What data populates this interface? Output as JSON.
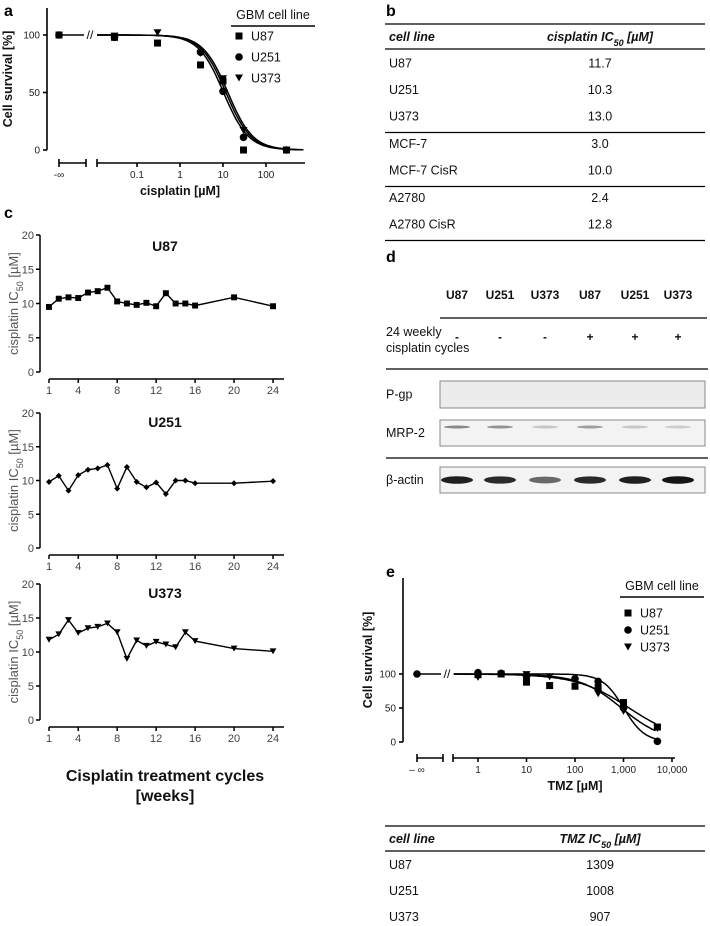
{
  "panel_labels": {
    "a": "a",
    "b": "b",
    "c": "c",
    "d": "d",
    "e": "e"
  },
  "chart_data": [
    {
      "id": "a",
      "type": "scatter",
      "xlabel": "cisplatin [µM]",
      "ylabel": "Cell survival [%]",
      "x_scale": "log",
      "x_ticks": [
        {
          "v": "-inf",
          "label": "-∞"
        },
        {
          "v": 0.1,
          "label": "0.1"
        },
        {
          "v": 1,
          "label": "1"
        },
        {
          "v": 10,
          "label": "10"
        },
        {
          "v": 100,
          "label": "100"
        }
      ],
      "y_ticks": [
        0,
        50,
        100
      ],
      "ylim": [
        0,
        120
      ],
      "legend_title": "GBM cell line",
      "legend_position": "top-right",
      "hill_slope": 1.5,
      "series": [
        {
          "name": "U87",
          "marker": "square",
          "ic50": 11.7,
          "points": [
            [
              "-inf",
              100
            ],
            [
              0.03,
              98
            ],
            [
              0.3,
              93
            ],
            [
              3,
              74
            ],
            [
              10,
              60
            ],
            [
              30,
              0
            ],
            [
              300,
              0
            ]
          ]
        },
        {
          "name": "U251",
          "marker": "circle",
          "ic50": 10.3,
          "points": [
            [
              "-inf",
              100
            ],
            [
              0.03,
              98
            ],
            [
              3,
              85
            ],
            [
              10,
              51
            ],
            [
              30,
              11
            ],
            [
              300,
              0
            ]
          ]
        },
        {
          "name": "U373",
          "marker": "triangle",
          "ic50": 13.0,
          "points": [
            [
              0.03,
              99
            ],
            [
              0.3,
              102
            ],
            [
              3,
              84
            ],
            [
              10,
              62
            ],
            [
              30,
              17
            ],
            [
              300,
              0
            ]
          ]
        }
      ]
    },
    {
      "id": "b",
      "type": "table",
      "columns": [
        "cell line",
        "cisplatin IC",
        "50",
        " [µM]"
      ],
      "groups": [
        [
          [
            "U87",
            "11.7"
          ],
          [
            "U251",
            "10.3"
          ],
          [
            "U373",
            "13.0"
          ]
        ],
        [
          [
            "MCF-7",
            "3.0"
          ],
          [
            "MCF-7 CisR",
            "10.0"
          ]
        ],
        [
          [
            "A2780",
            "2.4"
          ],
          [
            "A2780 CisR",
            "12.8"
          ]
        ]
      ]
    },
    {
      "id": "c",
      "type": "line",
      "xlabel_line1": "Cisplatin treatment cycles",
      "xlabel_line2": "[weeks]",
      "ylabel_prefix": "cisplatin IC",
      "ylabel_sub": "50",
      "ylabel_suffix": " [µM]",
      "x_ticks": [
        1,
        4,
        8,
        12,
        16,
        20,
        24
      ],
      "y_ticks": [
        0,
        5,
        10,
        15,
        20
      ],
      "ylim": [
        0,
        20
      ],
      "weeks": [
        1,
        2,
        3,
        4,
        5,
        6,
        7,
        8,
        9,
        10,
        11,
        12,
        13,
        14,
        15,
        16,
        20,
        24
      ],
      "series": [
        {
          "name": "U87",
          "marker": "square",
          "values": [
            9.5,
            10.7,
            10.9,
            10.8,
            11.6,
            11.8,
            12.3,
            10.3,
            10.0,
            9.8,
            10.1,
            9.6,
            11.5,
            10.0,
            10.0,
            9.7,
            10.9,
            9.6
          ]
        },
        {
          "name": "U251",
          "marker": "diamond",
          "values": [
            9.8,
            10.7,
            8.5,
            10.8,
            11.6,
            11.8,
            12.3,
            8.8,
            12.0,
            9.8,
            9.0,
            9.7,
            8.0,
            10.0,
            10.0,
            9.6,
            9.6,
            9.9
          ]
        },
        {
          "name": "U373",
          "marker": "triangle",
          "values": [
            11.8,
            12.6,
            14.7,
            12.8,
            13.5,
            13.7,
            14.2,
            12.9,
            9.0,
            11.7,
            10.9,
            11.5,
            11.1,
            10.7,
            12.9,
            11.6,
            10.5,
            10.1
          ]
        }
      ]
    },
    {
      "id": "e",
      "type": "scatter",
      "xlabel": "TMZ [µM]",
      "ylabel": "Cell survival [%]",
      "x_scale": "log",
      "x_ticks": [
        {
          "v": "-inf",
          "label": "– ∞"
        },
        {
          "v": 1,
          "label": "1"
        },
        {
          "v": 10,
          "label": "10"
        },
        {
          "v": 100,
          "label": "100"
        },
        {
          "v": 1000,
          "label": "1,000"
        },
        {
          "v": 10000,
          "label": "10,000"
        }
      ],
      "y_ticks": [
        0,
        50,
        100
      ],
      "ylim": [
        0,
        120
      ],
      "legend_title": "GBM cell line",
      "legend_position": "top-right",
      "series": [
        {
          "name": "U87",
          "marker": "square",
          "ic50": 1309,
          "hill": 0.8,
          "points": [
            [
              1,
              99
            ],
            [
              3,
              100
            ],
            [
              10,
              88
            ],
            [
              30,
              83
            ],
            [
              100,
              82
            ],
            [
              300,
              80
            ],
            [
              1000,
              58
            ],
            [
              5000,
              22
            ]
          ]
        },
        {
          "name": "U251",
          "marker": "circle",
          "ic50": 1008,
          "hill": 2.0,
          "points": [
            [
              "-inf",
              100
            ],
            [
              1,
              102
            ],
            [
              3,
              101
            ],
            [
              10,
              96
            ],
            [
              100,
              93
            ],
            [
              300,
              89
            ],
            [
              1000,
              50
            ],
            [
              5000,
              1
            ]
          ]
        },
        {
          "name": "U373",
          "marker": "triangle",
          "ic50": 907,
          "hill": 1.0,
          "points": [
            [
              1,
              95
            ],
            [
              10,
              99
            ],
            [
              30,
              96
            ],
            [
              300,
              71
            ],
            [
              1000,
              45
            ],
            [
              5000,
              20
            ]
          ]
        }
      ]
    },
    {
      "id": "e-table",
      "type": "table",
      "columns": [
        "cell line",
        "TMZ IC",
        "50",
        " [µM]"
      ],
      "groups": [
        [
          [
            "U87",
            "1309"
          ],
          [
            "U251",
            "1008"
          ],
          [
            "U373",
            "907"
          ]
        ]
      ]
    }
  ],
  "western_blot": {
    "lanes": [
      {
        "cell": "U87",
        "treated": "-",
        "actin": 0.95,
        "mrp2": 0.45
      },
      {
        "cell": "U251",
        "treated": "-",
        "actin": 0.9,
        "mrp2": 0.4
      },
      {
        "cell": "U373",
        "treated": "-",
        "actin": 0.6,
        "mrp2": 0.15
      },
      {
        "cell": "U87",
        "treated": "+",
        "actin": 0.9,
        "mrp2": 0.35
      },
      {
        "cell": "U251",
        "treated": "+",
        "actin": 0.95,
        "mrp2": 0.15
      },
      {
        "cell": "U373",
        "treated": "+",
        "actin": 1.0,
        "mrp2": 0.12
      }
    ],
    "condition_label_line1": "24 weekly",
    "condition_label_line2": "cisplatin cycles",
    "rows": [
      "P-gp",
      "MRP-2",
      "β-actin"
    ]
  }
}
